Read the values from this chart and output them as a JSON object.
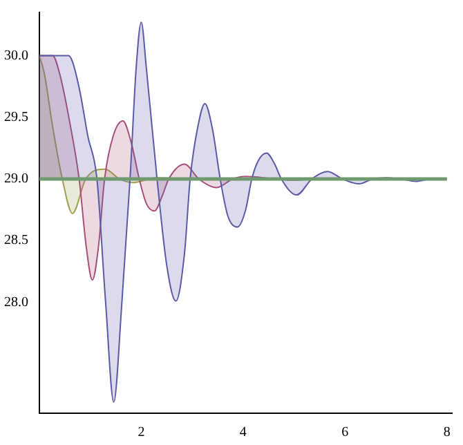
{
  "chart_data": {
    "type": "area",
    "xlim": [
      0,
      8.1
    ],
    "ylim": [
      27.1,
      30.35
    ],
    "xticks": [
      2,
      4,
      6,
      8
    ],
    "yticks": [
      {
        "value": 28,
        "label": "28.0"
      },
      {
        "value": 28.5,
        "label": "28.5"
      },
      {
        "value": 29,
        "label": "29.0"
      },
      {
        "value": 29.5,
        "label": "29.5"
      },
      {
        "value": 30,
        "label": "30.0"
      }
    ],
    "grid": false,
    "legend": false,
    "marker": "none",
    "line_style": "solid",
    "series": [
      {
        "type": "line",
        "color": "#6f9a6f",
        "x": [
          0,
          8
        ],
        "values": [
          29,
          29
        ]
      },
      {
        "color": "#5a5aa8",
        "x": [
          0,
          0.57,
          0.65,
          0.8,
          0.95,
          1.13,
          1.3,
          1.46,
          1.62,
          1.78,
          1.9,
          2.0,
          2.1,
          2.31,
          2.5,
          2.68,
          2.85,
          2.96,
          3.1,
          3.25,
          3.4,
          3.55,
          3.7,
          3.89,
          4.05,
          4.17,
          4.3,
          4.46,
          4.62,
          4.75,
          5.05,
          5.35,
          5.66,
          5.95,
          6.27,
          6.55,
          6.83,
          7.1,
          7.39,
          7.7,
          8
        ],
        "values": [
          30,
          30,
          29.95,
          29.7,
          29.35,
          29.0,
          28.0,
          27.19,
          28.0,
          29.0,
          29.9,
          30.27,
          29.9,
          29.0,
          28.3,
          28.01,
          28.4,
          29.0,
          29.4,
          29.61,
          29.4,
          29.0,
          28.7,
          28.61,
          28.75,
          29.0,
          29.15,
          29.21,
          29.12,
          29.0,
          28.87,
          29.0,
          29.06,
          29.0,
          28.96,
          29.0,
          29.01,
          29.0,
          28.98,
          29.0,
          29
        ]
      },
      {
        "color": "#a8507a",
        "x": [
          0,
          0.26,
          0.4,
          0.6,
          0.78,
          0.92,
          1.04,
          1.16,
          1.28,
          1.45,
          1.64,
          1.8,
          1.96,
          2.1,
          2.26,
          2.4,
          2.54,
          2.85,
          3.13,
          3.48,
          3.8,
          4.05,
          4.6,
          5.0,
          5.5,
          8
        ],
        "values": [
          30,
          30,
          29.85,
          29.45,
          29.0,
          28.45,
          28.18,
          28.45,
          29.0,
          29.35,
          29.47,
          29.3,
          29.0,
          28.8,
          28.74,
          28.85,
          29.0,
          29.12,
          29.0,
          28.93,
          29.0,
          29.02,
          29.0,
          28.99,
          29.0,
          29
        ]
      },
      {
        "color": "#a0a050",
        "x": [
          0,
          0.1,
          0.25,
          0.45,
          0.65,
          0.91,
          1.29,
          1.57,
          1.83,
          2.3,
          3,
          8
        ],
        "values": [
          30,
          29.85,
          29.45,
          29.0,
          28.72,
          29.0,
          29.08,
          29.0,
          28.97,
          29.01,
          29.0,
          29
        ]
      }
    ]
  }
}
